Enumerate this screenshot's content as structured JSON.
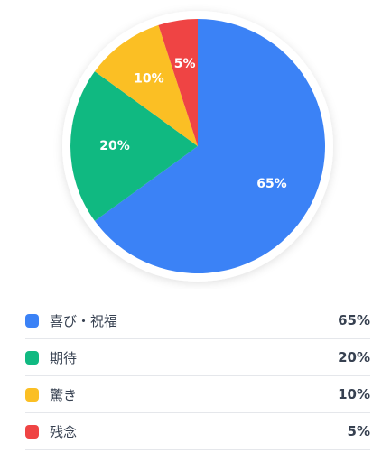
{
  "chart_data": {
    "type": "pie",
    "categories": [
      "喜び・祝福",
      "期待",
      "驚き",
      "残念"
    ],
    "values": [
      65,
      20,
      10,
      5
    ],
    "slice_labels": [
      "65%",
      "20%",
      "10%",
      "5%"
    ],
    "colors": [
      "#3b82f6",
      "#10b981",
      "#fbbf24",
      "#ef4444"
    ],
    "legend_placement": "bottom"
  },
  "legend": [
    {
      "label": "喜び・祝福",
      "value": "65%",
      "color": "#3b82f6"
    },
    {
      "label": "期待",
      "value": "20%",
      "color": "#10b981"
    },
    {
      "label": "驚き",
      "value": "10%",
      "color": "#fbbf24"
    },
    {
      "label": "残念",
      "value": "5%",
      "color": "#ef4444"
    }
  ]
}
